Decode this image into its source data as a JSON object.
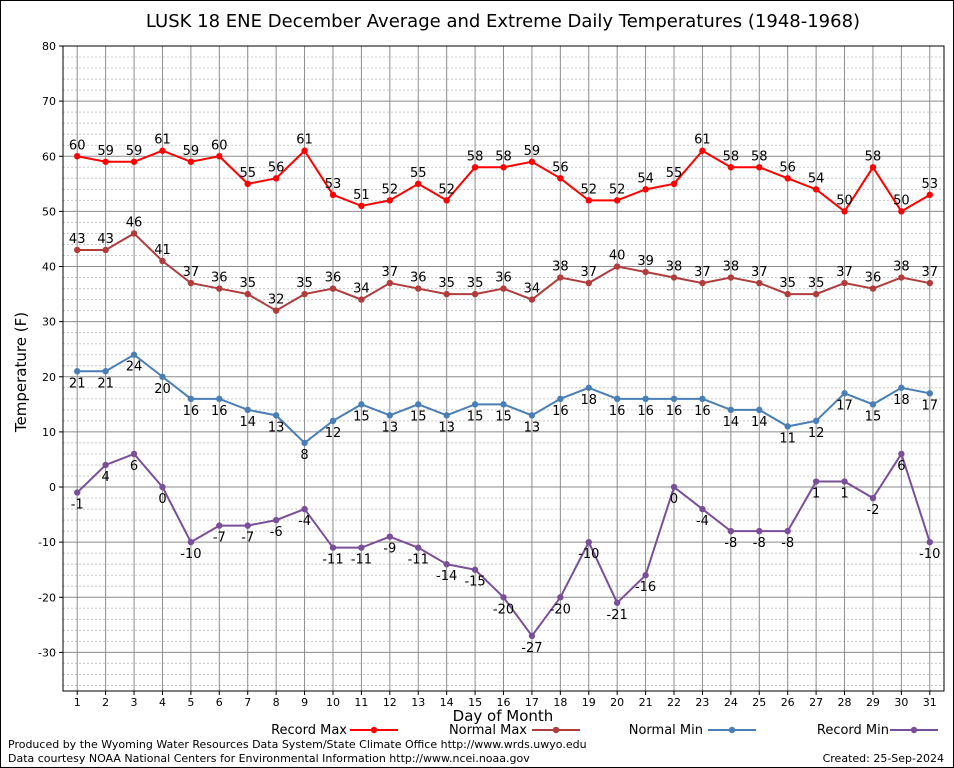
{
  "chart_data": {
    "type": "line",
    "title": "LUSK 18 ENE December Average and Extreme Daily Temperatures (1948-1968)",
    "xlabel": "Day of Month",
    "ylabel": "Temperature (F)",
    "ylim": [
      -37,
      80
    ],
    "xlim": [
      0.5,
      31.5
    ],
    "yticks": [
      -30,
      -20,
      -10,
      0,
      10,
      20,
      30,
      40,
      50,
      60,
      70,
      80
    ],
    "grid": true,
    "legend_position": "bottom",
    "x": [
      1,
      2,
      3,
      4,
      5,
      6,
      7,
      8,
      9,
      10,
      11,
      12,
      13,
      14,
      15,
      16,
      17,
      18,
      19,
      20,
      21,
      22,
      23,
      24,
      25,
      26,
      27,
      28,
      29,
      30,
      31
    ],
    "series": [
      {
        "name": "Record Max",
        "color": "#ff0000",
        "label_pos": "above",
        "values": [
          60,
          59,
          59,
          61,
          59,
          60,
          55,
          56,
          61,
          53,
          51,
          52,
          55,
          52,
          58,
          58,
          59,
          56,
          52,
          52,
          54,
          55,
          61,
          58,
          58,
          56,
          54,
          50,
          58,
          50,
          53
        ]
      },
      {
        "name": "Normal Max",
        "color": "#b03c3c",
        "label_pos": "above",
        "values": [
          43,
          43,
          46,
          41,
          37,
          36,
          35,
          32,
          35,
          36,
          34,
          37,
          36,
          35,
          35,
          36,
          34,
          38,
          37,
          40,
          39,
          38,
          37,
          38,
          37,
          35,
          35,
          37,
          36,
          38,
          37
        ]
      },
      {
        "name": "Normal Min",
        "color": "#4a7fb5",
        "label_pos": "below",
        "values": [
          21,
          21,
          24,
          20,
          16,
          16,
          14,
          13,
          8,
          12,
          15,
          13,
          15,
          13,
          15,
          15,
          13,
          16,
          18,
          16,
          16,
          16,
          16,
          14,
          14,
          11,
          12,
          17,
          15,
          18,
          17
        ]
      },
      {
        "name": "Record Min",
        "color": "#7a4f9a",
        "label_pos": "below",
        "values": [
          -1,
          4,
          6,
          0,
          -10,
          -7,
          -7,
          -6,
          -4,
          -11,
          -11,
          -9,
          -11,
          -14,
          -15,
          -20,
          -27,
          -20,
          -10,
          -21,
          -16,
          0,
          -4,
          -8,
          -8,
          -8,
          1,
          1,
          -2,
          6,
          -10
        ]
      }
    ]
  },
  "footer": {
    "produced_by": "Produced by the Wyoming Water Resources Data System/State Climate Office http://www.wrds.uwyo.edu",
    "data_courtesy": "Data courtesy NOAA National Centers for Environmental Information http://www.ncei.noaa.gov",
    "created": "Created:  25-Sep-2024"
  }
}
